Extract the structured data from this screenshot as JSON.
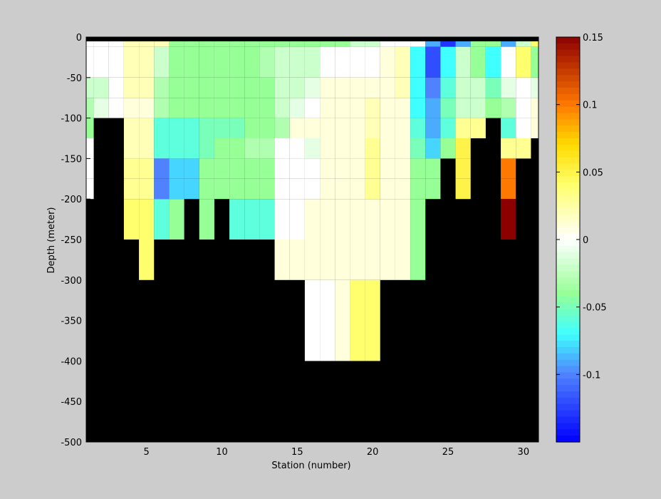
{
  "chart_data": {
    "type": "heatmap",
    "title": "",
    "xlabel": "Station (number)",
    "ylabel": "Depth (meter)",
    "xlim": [
      1,
      31
    ],
    "ylim": [
      -500,
      0
    ],
    "xticks": [
      5,
      10,
      15,
      20,
      25,
      30
    ],
    "yticks": [
      0,
      -50,
      -100,
      -150,
      -200,
      -250,
      -300,
      -350,
      -400,
      -450,
      -500
    ],
    "colorbar": {
      "range": [
        -0.15,
        0.15
      ],
      "ticks": [
        0.15,
        0.1,
        0.05,
        0,
        -0.05,
        -0.1
      ],
      "colormap": "jet-like diverging (blue-cyan-green-white-yellow-orange-red)"
    },
    "grid": false,
    "background_mask_color": "#000000",
    "stations": [
      1,
      2,
      3,
      4,
      5,
      6,
      7,
      8,
      9,
      10,
      11,
      12,
      13,
      14,
      15,
      16,
      17,
      18,
      19,
      20,
      21,
      22,
      23,
      24,
      25,
      26,
      27,
      28,
      29,
      30,
      31
    ],
    "depth_bins": [
      -5,
      -25,
      -75,
      -125,
      -175,
      -225,
      -275,
      -325,
      -375
    ],
    "values": [
      [
        0.0,
        0.0,
        0.0,
        0.02,
        0.02,
        0.02,
        -0.04,
        -0.04,
        -0.04,
        -0.04,
        -0.04,
        -0.04,
        -0.04,
        -0.04,
        -0.04,
        -0.04,
        -0.04,
        -0.04,
        -0.02,
        -0.02,
        0.0,
        0.0,
        0.0,
        -0.09,
        -0.13,
        -0.09,
        -0.04,
        -0.04,
        -0.09,
        -0.02,
        0.04
      ],
      [
        0.0,
        0.0,
        0.0,
        0.02,
        0.02,
        -0.02,
        -0.04,
        -0.04,
        -0.04,
        -0.04,
        -0.04,
        -0.04,
        -0.03,
        -0.02,
        -0.02,
        -0.02,
        0.0,
        0.0,
        0.0,
        0.0,
        0.01,
        0.02,
        -0.07,
        -0.12,
        -0.07,
        -0.02,
        -0.04,
        -0.07,
        0.0,
        0.04,
        -0.04
      ],
      [
        -0.02,
        -0.02,
        0.0,
        0.02,
        0.02,
        -0.03,
        -0.04,
        -0.04,
        -0.04,
        -0.04,
        -0.04,
        -0.04,
        -0.04,
        -0.02,
        -0.02,
        -0.01,
        0.01,
        0.01,
        0.01,
        0.01,
        0.01,
        0.02,
        -0.07,
        -0.1,
        -0.06,
        -0.02,
        -0.02,
        -0.05,
        -0.01,
        0.0,
        -0.01
      ],
      [
        -0.03,
        -0.01,
        0.0,
        0.01,
        0.01,
        -0.03,
        -0.04,
        -0.04,
        -0.04,
        -0.04,
        -0.04,
        -0.04,
        -0.04,
        -0.02,
        -0.01,
        0.0,
        0.01,
        0.01,
        0.01,
        0.02,
        0.01,
        0.01,
        -0.07,
        -0.09,
        -0.05,
        -0.02,
        -0.02,
        -0.04,
        -0.03,
        0.0,
        0.01
      ],
      [
        -0.04,
        null,
        null,
        0.02,
        0.02,
        -0.06,
        -0.06,
        -0.06,
        -0.05,
        -0.05,
        -0.05,
        -0.04,
        -0.04,
        -0.03,
        0.01,
        0.01,
        0.01,
        0.01,
        0.01,
        0.02,
        0.01,
        0.01,
        -0.06,
        -0.09,
        -0.06,
        0.03,
        0.03,
        null,
        -0.06,
        0.0,
        0.01
      ],
      [
        0.0,
        null,
        null,
        0.02,
        0.02,
        -0.06,
        -0.06,
        -0.06,
        -0.05,
        -0.04,
        -0.04,
        -0.03,
        -0.03,
        0.0,
        0.0,
        -0.01,
        0.01,
        0.01,
        0.01,
        0.03,
        0.01,
        0.01,
        -0.05,
        -0.08,
        -0.04,
        0.05,
        null,
        null,
        0.03,
        0.03,
        null
      ],
      [
        0.0,
        null,
        null,
        0.03,
        0.03,
        -0.1,
        -0.08,
        -0.08,
        -0.04,
        -0.04,
        -0.04,
        -0.04,
        -0.04,
        0.0,
        0.0,
        0.0,
        0.01,
        0.01,
        0.01,
        0.03,
        0.01,
        0.01,
        -0.04,
        -0.04,
        null,
        0.05,
        null,
        null,
        0.1,
        null,
        null
      ],
      [
        0.0,
        null,
        null,
        0.03,
        0.03,
        -0.1,
        -0.08,
        -0.08,
        -0.04,
        -0.04,
        -0.04,
        -0.04,
        -0.04,
        0.0,
        0.0,
        0.0,
        0.01,
        0.01,
        0.01,
        0.03,
        0.01,
        0.01,
        -0.04,
        -0.04,
        null,
        0.05,
        null,
        null,
        0.1,
        null,
        null
      ],
      [
        null,
        null,
        null,
        0.04,
        0.04,
        -0.06,
        -0.04,
        null,
        -0.04,
        null,
        -0.06,
        -0.06,
        -0.06,
        0.0,
        0.0,
        0.01,
        0.01,
        0.01,
        0.01,
        0.01,
        0.01,
        0.01,
        -0.04,
        null,
        null,
        null,
        null,
        null,
        0.15,
        null,
        null
      ]
    ],
    "rows_depth_from": [
      0,
      -12,
      -50,
      -75,
      -100,
      -125,
      -150,
      -175,
      -200
    ],
    "rows_depth_to": [
      -12,
      -50,
      -75,
      -100,
      -125,
      -150,
      -175,
      -200,
      -250
    ]
  }
}
